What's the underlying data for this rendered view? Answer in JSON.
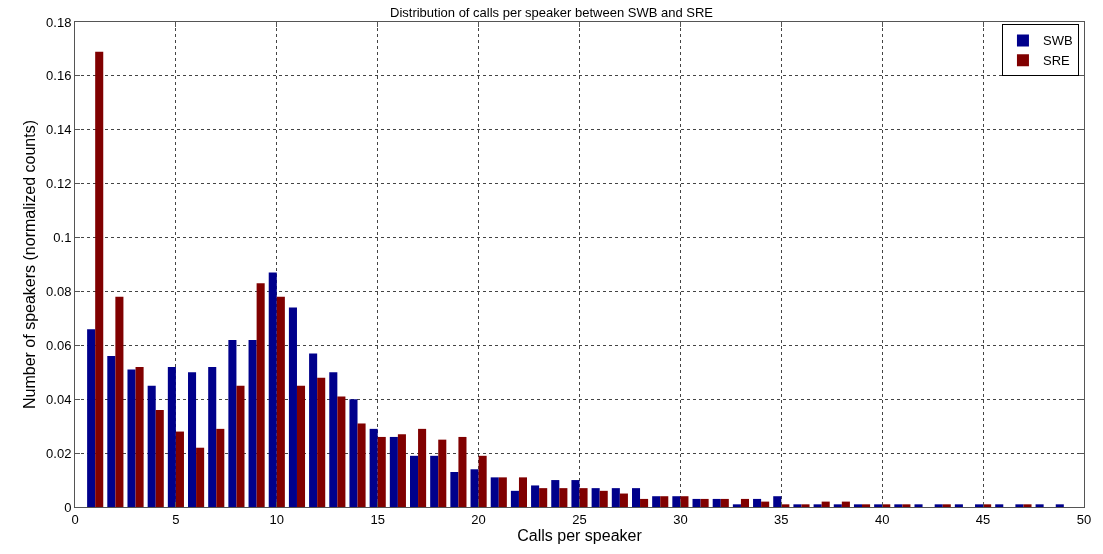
{
  "chart_data": {
    "type": "bar",
    "title": "Distribution of calls per speaker between SWB and SRE",
    "xlabel": "Calls per speaker",
    "ylabel": "Number of speakers (normalized counts)",
    "x": [
      1,
      2,
      3,
      4,
      5,
      6,
      7,
      8,
      9,
      10,
      11,
      12,
      13,
      14,
      15,
      16,
      17,
      18,
      19,
      20,
      21,
      22,
      23,
      24,
      25,
      26,
      27,
      28,
      29,
      30,
      31,
      32,
      33,
      34,
      35,
      36,
      37,
      38,
      39,
      40,
      41,
      42,
      43,
      44,
      45,
      46,
      47,
      48,
      49
    ],
    "series": [
      {
        "name": "SWB",
        "color": "#00008b",
        "values": [
          0.066,
          0.056,
          0.051,
          0.045,
          0.052,
          0.05,
          0.052,
          0.062,
          0.062,
          0.087,
          0.074,
          0.057,
          0.05,
          0.04,
          0.029,
          0.026,
          0.019,
          0.019,
          0.013,
          0.014,
          0.011,
          0.006,
          0.008,
          0.01,
          0.01,
          0.007,
          0.007,
          0.007,
          0.004,
          0.004,
          0.003,
          0.003,
          0.001,
          0.003,
          0.004,
          0.001,
          0.001,
          0.001,
          0.001,
          0.001,
          0.001,
          0.001,
          0.001,
          0.001,
          0.001,
          0.001,
          0.001,
          0.001,
          0.001
        ]
      },
      {
        "name": "SRE",
        "color": "#800000",
        "values": [
          0.169,
          0.078,
          0.052,
          0.036,
          0.028,
          0.022,
          0.029,
          0.045,
          0.083,
          0.078,
          0.045,
          0.048,
          0.041,
          0.031,
          0.026,
          0.027,
          0.029,
          0.025,
          0.026,
          0.019,
          0.011,
          0.011,
          0.007,
          0.007,
          0.007,
          0.006,
          0.005,
          0.003,
          0.004,
          0.004,
          0.003,
          0.003,
          0.003,
          0.002,
          0.001,
          0.001,
          0.002,
          0.002,
          0.001,
          0.001,
          0.001,
          0,
          0.001,
          0,
          0.001,
          0,
          0.001,
          0,
          0
        ]
      }
    ],
    "xlim": [
      0,
      50
    ],
    "xticks": [
      0,
      5,
      10,
      15,
      20,
      25,
      30,
      35,
      40,
      45,
      50
    ],
    "ylim": [
      0,
      0.18
    ],
    "yticks": [
      0,
      0.02,
      0.04,
      0.06,
      0.08,
      0.1,
      0.12,
      0.14,
      0.16,
      0.18
    ],
    "grid": true,
    "legend": "top right"
  }
}
